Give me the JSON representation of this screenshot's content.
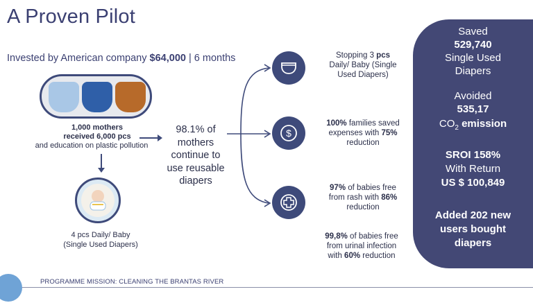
{
  "title": "A Proven Pilot",
  "invested": {
    "prefix": "Invested by American company ",
    "amount": "$64,000",
    "suffix": " | 6 months"
  },
  "left": {
    "caption_bold": "1,000 mothers received 6,000 pcs",
    "caption_line1": "1,000 mothers",
    "caption_line2": "received 6,000 pcs",
    "caption_rest": "and education on plastic pollution",
    "result_line1": "4 pcs Daily/ Baby",
    "result_line2": "(Single Used Diapers)"
  },
  "center": {
    "line1": "98.1% of",
    "line2": "mothers",
    "line3": "continue to",
    "line4": "use reusable",
    "line5": "diapers"
  },
  "stats": [
    {
      "icon": "diaper-icon",
      "line1_pre": "Stopping 3 ",
      "line1_bold": "pcs",
      "line2": "Daily/ Baby (Single",
      "line3": "Used Diapers)"
    },
    {
      "icon": "dollar-icon",
      "line1_bold": "100%",
      "line1_post": " families saved",
      "line2_pre": "expenses with ",
      "line2_bold": "75%",
      "line3": "reduction"
    },
    {
      "icon": "medical-cross-icon",
      "line1_bold": "97%",
      "line1_post": " of babies free",
      "line2_pre": "from rash with ",
      "line2_bold": "86%",
      "line3": "reduction"
    },
    {
      "line1_bold": "99,8%",
      "line1_post": " of babies free",
      "line2": "from urinal infection",
      "line3_pre": "with ",
      "line3_bold": "60%",
      "line3_post": " reduction"
    }
  ],
  "panel": {
    "saved_label": "Saved",
    "saved_value": "529,740",
    "saved_unit1": "Single Used",
    "saved_unit2": "Diapers",
    "avoided_label": "Avoided",
    "avoided_value": "535,17",
    "co2": "CO",
    "co2_sub": "2",
    "emission": " emission",
    "sroi": "SROI 158%",
    "with_return": "With Return",
    "return_value": "US $ 100,849",
    "added_line1": "Added 202 new",
    "added_line2": "users bought",
    "added_line3": "diapers"
  },
  "footer": {
    "mission": "PROGRAMME MISSION: CLEANING THE BRANTAS RIVER"
  },
  "colors": {
    "navy": "#3e4a7a",
    "panel": "#434875",
    "accent_blue": "#6fa3d6"
  }
}
